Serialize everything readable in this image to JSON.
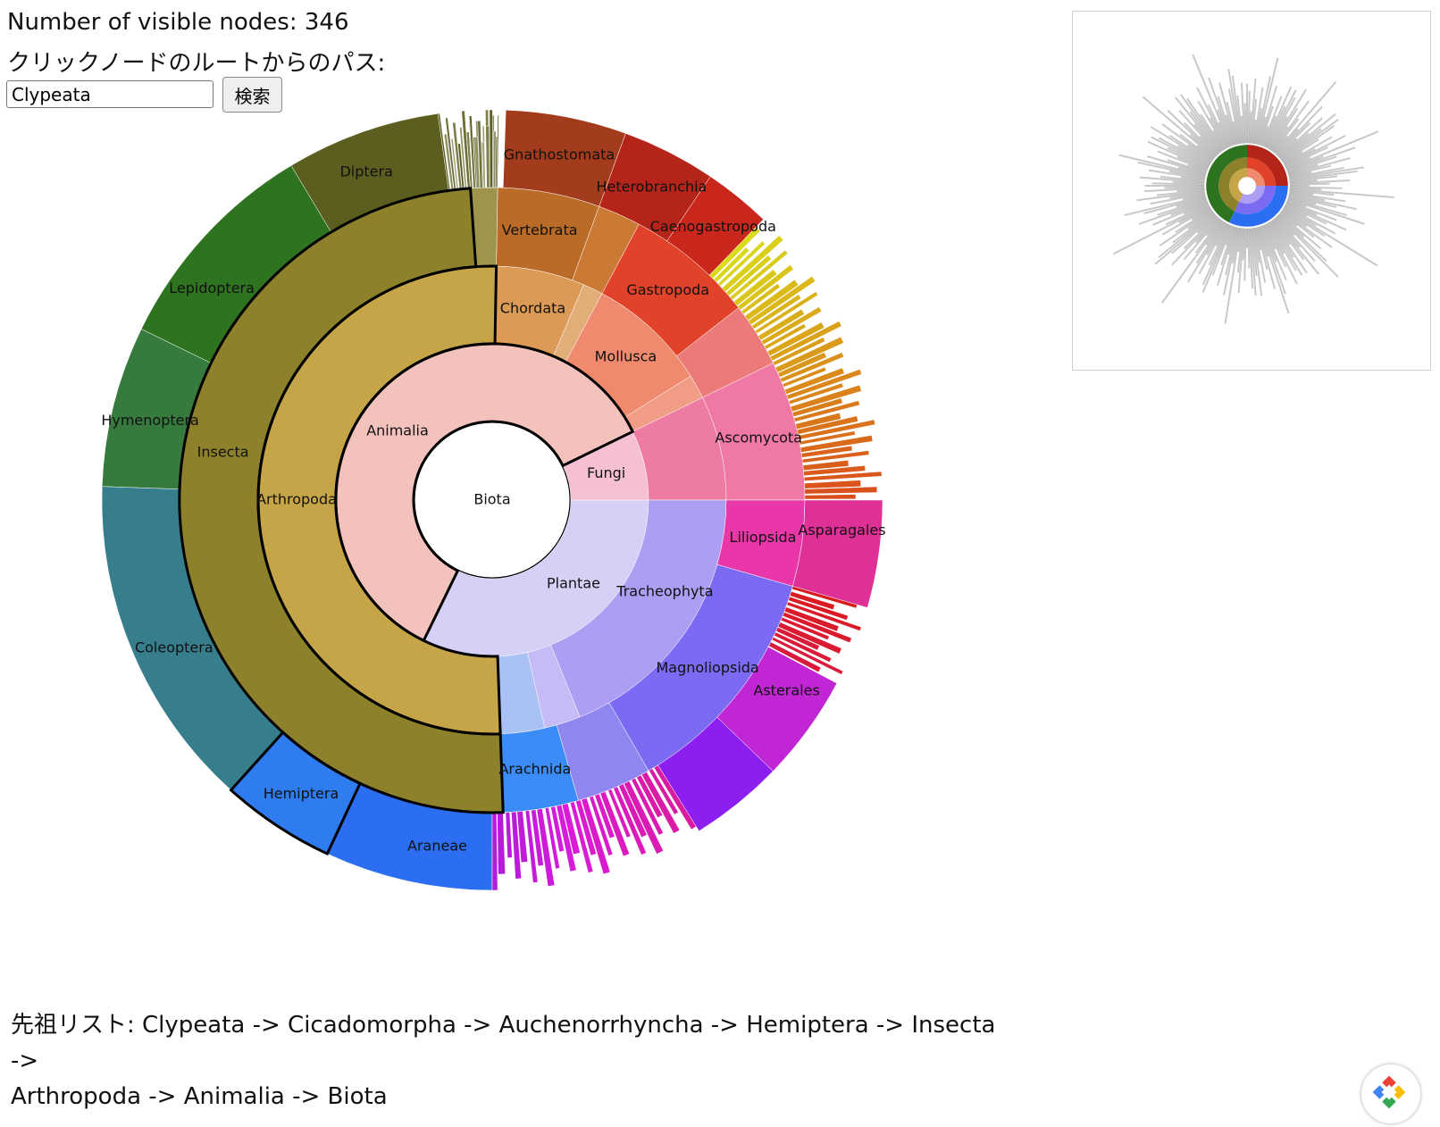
{
  "header": {
    "count_label": "Number of visible nodes:",
    "count_value": "346",
    "path_label": "クリックノードのルートからのパス:"
  },
  "search": {
    "value": "Clypeata",
    "button_label": "検索"
  },
  "sunburst": {
    "root": "Biota",
    "selected_path": [
      "Biota",
      "Animalia",
      "Arthropoda",
      "Insecta",
      "Hemiptera"
    ],
    "labels": {
      "biota": "Biota",
      "animalia": "Animalia",
      "fungi": "Fungi",
      "plantae": "Plantae",
      "arthropoda": "Arthropoda",
      "chordata": "Chordata",
      "mollusca": "Mollusca",
      "ascomycota": "Ascomycota",
      "tracheophyta": "Tracheophyta",
      "insecta": "Insecta",
      "arachnida": "Arachnida",
      "vertebrata": "Vertebrata",
      "gastropoda": "Gastropoda",
      "liliopsida": "Liliopsida",
      "magnoliopsida": "Magnoliopsida",
      "diptera": "Diptera",
      "lepidoptera": "Lepidoptera",
      "hymenoptera": "Hymenoptera",
      "coleoptera": "Coleoptera",
      "hemiptera": "Hemiptera",
      "araneae": "Araneae",
      "gnathostomata": "Gnathostomata",
      "heterobranchia": "Heterobranchia",
      "caenogastropoda": "Caenogastropoda",
      "asparagales": "Asparagales",
      "asterales": "Asterales"
    }
  },
  "colors": {
    "animalia": "#f4c2bd",
    "fungi": "#f5c0d4",
    "plantae": "#d6d0f7",
    "arthropoda": "#c6a548",
    "insecta": "#8d812c",
    "diptera": "#5c5e1f",
    "lepidoptera": "#2e7320",
    "hymenoptera": "#367a3e",
    "coleoptera": "#367e8c",
    "hemiptera": "#2f7bf0",
    "arachnida": "#3b8cf7",
    "araneae": "#2c6ef2",
    "chordata": "#db9a56",
    "vertebrata": "#ba6b28",
    "gnathostomata": "#a23c1d",
    "mollusca": "#ef8a6e",
    "gastropoda": "#e0432a",
    "heterobranchia": "#b52419",
    "ascomycota": "#ee7ba2",
    "tracheophyta": "#ae9ef3",
    "liliopsida": "#e936a8",
    "magnoliopsida": "#7b6bf3",
    "asterales": "#c026d3",
    "selected_outline": "#000000"
  },
  "ancestors": {
    "label": "先祖リスト:",
    "chain": [
      "Clypeata",
      "Cicadomorpha",
      "Auchenorrhyncha",
      "Hemiptera",
      "Insecta",
      "Arthropoda",
      "Animalia",
      "Biota"
    ],
    "separator": " -> ",
    "line1": "先祖リスト: Clypeata -> Cicadomorpha -> Auchenorrhyncha -> Hemiptera -> Insecta ->",
    "line2": "Arthropoda -> Animalia -> Biota"
  },
  "icons": {
    "corner_badge": "extension-logo-icon"
  }
}
